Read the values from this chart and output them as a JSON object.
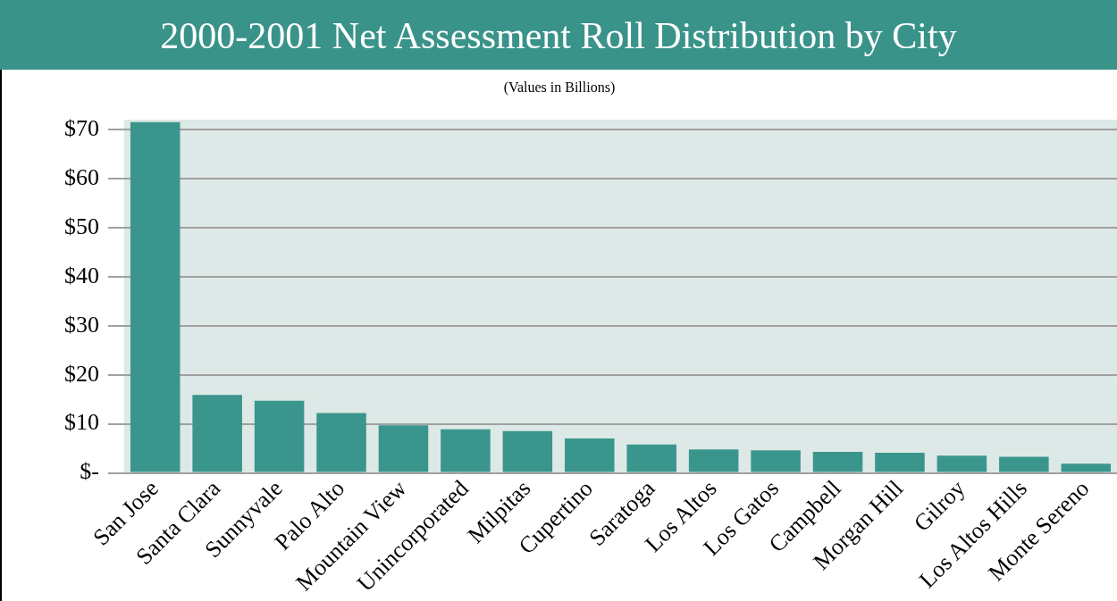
{
  "chart_data": {
    "type": "bar",
    "title": "2000-2001 Net Assessment Roll Distribution by City",
    "subtitle": "(Values in Billions)",
    "categories": [
      "San Jose",
      "Santa Clara",
      "Sunnyvale",
      "Palo Alto",
      "Mountain View",
      "Unincorporated",
      "Milpitas",
      "Cupertino",
      "Saratoga",
      "Los Altos",
      "Los Gatos",
      "Campbell",
      "Morgan Hill",
      "Gilroy",
      "Los Altos Hills",
      "Monte Sereno"
    ],
    "values": [
      71.5,
      15.9,
      14.7,
      12.2,
      9.7,
      8.9,
      8.5,
      7.0,
      5.8,
      4.8,
      4.6,
      4.3,
      4.1,
      3.5,
      3.3,
      1.9
    ],
    "color": "#3a968c",
    "ylim": [
      0,
      72
    ],
    "yticks": [
      {
        "value": 0,
        "label": "$-"
      },
      {
        "value": 10,
        "label": "$10"
      },
      {
        "value": 20,
        "label": "$20"
      },
      {
        "value": 30,
        "label": "$30"
      },
      {
        "value": 40,
        "label": "$40"
      },
      {
        "value": 50,
        "label": "$50"
      },
      {
        "value": 60,
        "label": "$60"
      },
      {
        "value": 70,
        "label": "$70"
      }
    ],
    "grid": "y",
    "legend": false
  }
}
